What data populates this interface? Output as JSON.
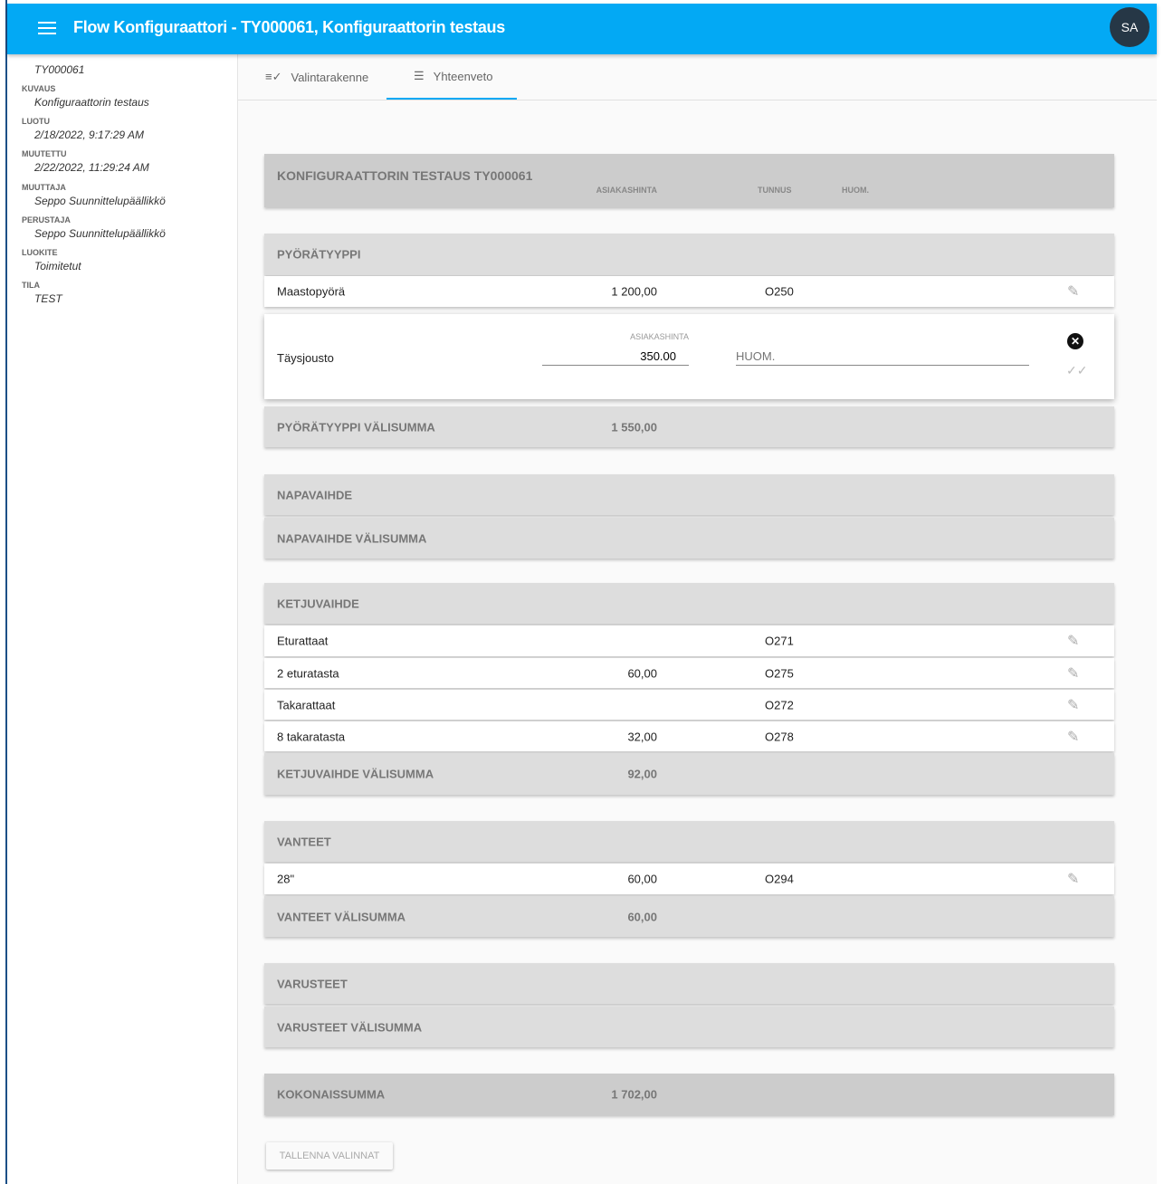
{
  "header": {
    "title": "Flow Konfiguraattori - TY000061, Konfiguraattorin testaus",
    "avatar": "SA",
    "color": "#03a9f4"
  },
  "sidebar": {
    "id": "TY000061",
    "fields": [
      {
        "label": "KUVAUS",
        "value": "Konfiguraattorin testaus"
      },
      {
        "label": "LUOTU",
        "value": "2/18/2022, 9:17:29 AM"
      },
      {
        "label": "MUUTETTU",
        "value": "2/22/2022, 11:29:24 AM"
      },
      {
        "label": "MUUTTAJA",
        "value": "Seppo Suunnittelupäällikkö"
      },
      {
        "label": "PERUSTAJA",
        "value": "Seppo Suunnittelupäällikkö"
      },
      {
        "label": "LUOKITE",
        "value": "Toimitetut"
      },
      {
        "label": "TILA",
        "value": "TEST"
      }
    ]
  },
  "tabs": [
    {
      "label": "Valintarakenne",
      "icon": "playlist-check-icon"
    },
    {
      "label": "Yhteenveto",
      "icon": "list-icon",
      "active": true
    }
  ],
  "summary": {
    "title": "KONFIGURAATTORIN TESTAUS TY000061",
    "col_price": "ASIAKASHINTA",
    "col_code": "TUNNUS",
    "col_note": "HUOM."
  },
  "groups": {
    "pyora": {
      "title": "PYÖRÄTYYPPI",
      "rows": [
        {
          "name": "Maastopyörä",
          "price": "1 200,00",
          "code": "O250"
        }
      ],
      "editing": {
        "name": "Täysjousto",
        "price_label": "ASIAKASHINTA",
        "price": "350.00",
        "note_placeholder": "HUOM."
      },
      "subtotal_label": "PYÖRÄTYYPPI VÄLISUMMA",
      "subtotal": "1 550,00"
    },
    "napa": {
      "title": "NAPAVAIHDE",
      "subtotal_label": "NAPAVAIHDE VÄLISUMMA"
    },
    "ketju": {
      "title": "KETJUVAIHDE",
      "rows": [
        {
          "name": "Eturattaat",
          "price": "",
          "code": "O271"
        },
        {
          "name": "2 eturatasta",
          "price": "60,00",
          "code": "O275"
        },
        {
          "name": "Takarattaat",
          "price": "",
          "code": "O272"
        },
        {
          "name": "8 takaratasta",
          "price": "32,00",
          "code": "O278"
        }
      ],
      "subtotal_label": "KETJUVAIHDE VÄLISUMMA",
      "subtotal": "92,00"
    },
    "vanteet": {
      "title": "VANTEET",
      "rows": [
        {
          "name": "28\"",
          "price": "60,00",
          "code": "O294"
        }
      ],
      "subtotal_label": "VANTEET VÄLISUMMA",
      "subtotal": "60,00"
    },
    "varusteet": {
      "title": "VARUSTEET",
      "subtotal_label": "VARUSTEET VÄLISUMMA"
    }
  },
  "total": {
    "label": "KOKONAISSUMMA",
    "value": "1 702,00"
  },
  "save_button": "TALLENNA VALINNAT"
}
